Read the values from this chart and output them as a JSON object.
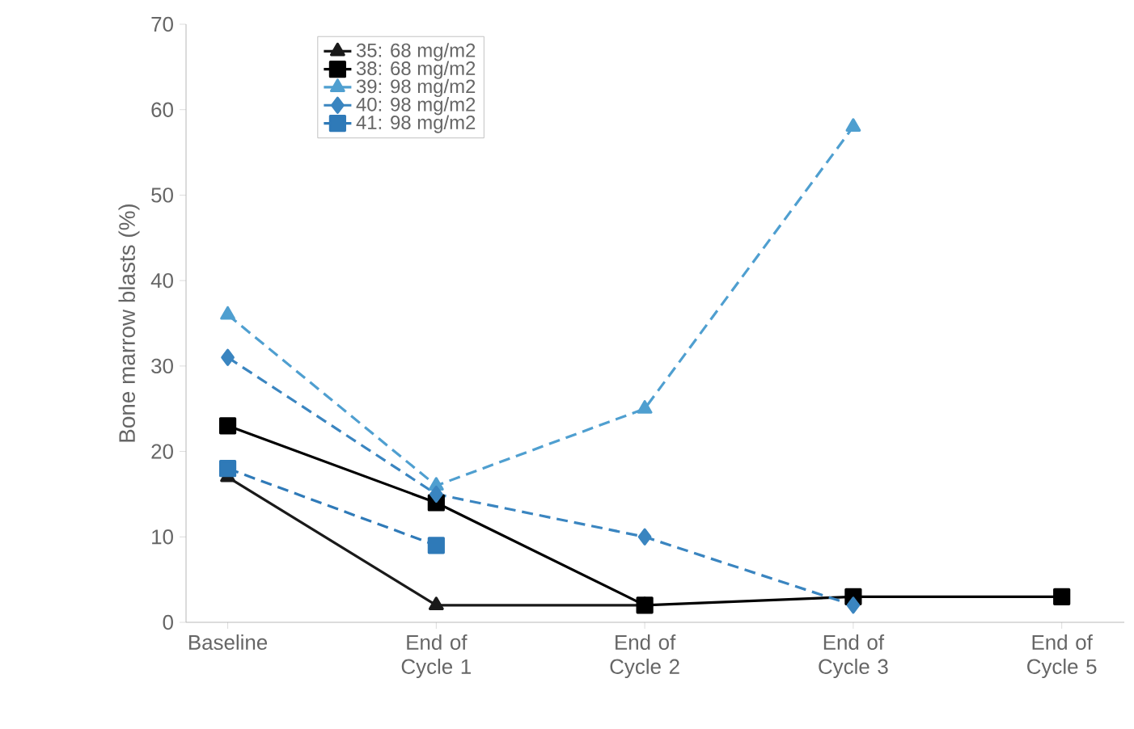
{
  "chart_data": {
    "type": "line",
    "ylabel": "Bone marrow blasts (%)",
    "categories": [
      "Baseline",
      "End of Cycle 1",
      "End of Cycle 2",
      "End of Cycle 3",
      "End of Cycle 5"
    ],
    "series": [
      {
        "name": "35: 68 mg/m2",
        "color": "#1a1a1a",
        "marker": "triangle",
        "line_style": "solid",
        "values": [
          17,
          2,
          2,
          null,
          null
        ]
      },
      {
        "name": "38: 68 mg/m2",
        "color": "#000000",
        "marker": "square",
        "line_style": "solid",
        "values": [
          23,
          14,
          2,
          3,
          3
        ]
      },
      {
        "name": "39: 98 mg/m2",
        "color": "#4f9fd0",
        "marker": "triangle",
        "line_style": "dashed",
        "values": [
          36,
          16,
          25,
          58,
          null
        ]
      },
      {
        "name": "40: 98 mg/m2",
        "color": "#3a85c0",
        "marker": "diamond",
        "line_style": "dashed",
        "values": [
          31,
          15,
          10,
          2,
          null
        ]
      },
      {
        "name": "41: 98 mg/m2",
        "color": "#2f7ab8",
        "marker": "square",
        "line_style": "dashed",
        "values": [
          18,
          9,
          null,
          null,
          null
        ]
      }
    ],
    "ylim": [
      0,
      70
    ],
    "yticks": [
      0,
      10,
      20,
      30,
      40,
      50,
      60,
      70
    ],
    "legend": "top left",
    "grid": false
  }
}
